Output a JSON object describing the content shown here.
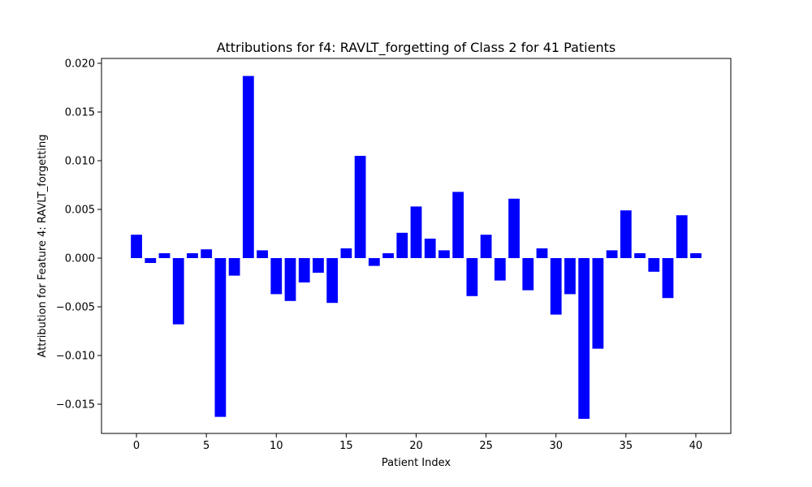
{
  "chart_data": {
    "type": "bar",
    "title": "Attributions for f4: RAVLT_forgetting of Class 2 for 41 Patients",
    "xlabel": "Patient Index",
    "ylabel": "Attribution for Feature 4: RAVLT_forgetting",
    "xlim": [
      -2.5,
      42.5
    ],
    "ylim": [
      -0.018,
      0.0205
    ],
    "grid": false,
    "bar_color": "#0000ff",
    "x_ticks": [
      0,
      5,
      10,
      15,
      20,
      25,
      30,
      35,
      40
    ],
    "x_tick_labels": [
      "0",
      "5",
      "10",
      "15",
      "20",
      "25",
      "30",
      "35",
      "40"
    ],
    "y_ticks": [
      -0.015,
      -0.01,
      -0.005,
      0.0,
      0.005,
      0.01,
      0.015,
      0.02
    ],
    "y_tick_labels": [
      "−0.015",
      "−0.010",
      "−0.005",
      "0.000",
      "0.005",
      "0.010",
      "0.015",
      "0.020"
    ],
    "categories": [
      0,
      1,
      2,
      3,
      4,
      5,
      6,
      7,
      8,
      9,
      10,
      11,
      12,
      13,
      14,
      15,
      16,
      17,
      18,
      19,
      20,
      21,
      22,
      23,
      24,
      25,
      26,
      27,
      28,
      29,
      30,
      31,
      32,
      33,
      34,
      35,
      36,
      37,
      38,
      39,
      40
    ],
    "values": [
      0.0024,
      -0.0005,
      0.0005,
      -0.0068,
      0.0005,
      0.0009,
      -0.0163,
      -0.0018,
      0.0187,
      0.0008,
      -0.0037,
      -0.0044,
      -0.0025,
      -0.0015,
      -0.0046,
      0.001,
      0.0105,
      -0.0008,
      0.0005,
      0.0026,
      0.0053,
      0.002,
      0.0008,
      0.0068,
      -0.0039,
      0.0024,
      -0.0023,
      0.0061,
      -0.0033,
      0.001,
      -0.0058,
      -0.0037,
      -0.0165,
      -0.0093,
      0.0008,
      0.0049,
      0.0005,
      -0.0014,
      -0.0041,
      0.0044,
      0.0005
    ]
  }
}
